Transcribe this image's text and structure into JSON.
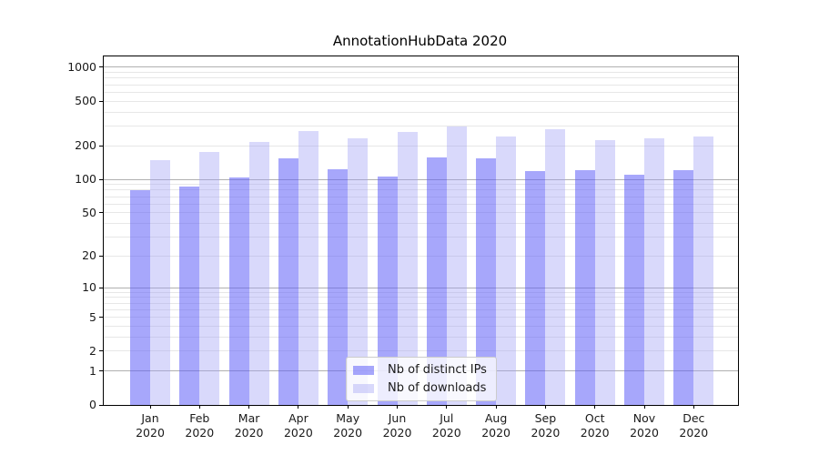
{
  "chart_data": {
    "type": "bar",
    "title": "AnnotationHubData 2020",
    "categories": [
      "Jan 2020",
      "Feb 2020",
      "Mar 2020",
      "Apr 2020",
      "May 2020",
      "Jun 2020",
      "Jul 2020",
      "Aug 2020",
      "Sep 2020",
      "Oct 2020",
      "Nov 2020",
      "Dec 2020"
    ],
    "series": [
      {
        "name": "Nb of distinct IPs",
        "color": "rgba(95,95,248,0.55)",
        "values": [
          80,
          86,
          105,
          155,
          123,
          107,
          157,
          155,
          119,
          121,
          110,
          121
        ]
      },
      {
        "name": "Nb of downloads",
        "color": "rgba(160,160,245,0.40)",
        "values": [
          150,
          176,
          218,
          272,
          232,
          266,
          297,
          242,
          281,
          223,
          233,
          242
        ]
      }
    ],
    "y_ticks": [
      0,
      1,
      2,
      5,
      10,
      20,
      50,
      100,
      200,
      500,
      1000
    ],
    "y_scale": "log10(1+x)",
    "ylim": [
      0,
      1230
    ],
    "xlabel": "",
    "ylabel": "",
    "grid": true,
    "legend_position": "lower center"
  },
  "colors": {
    "background": "#ffffff",
    "axis": "#000000",
    "grid_major": "#b0b0b0",
    "grid_minor": "#e7e7e7",
    "text": "#1a1a1a",
    "legend_border": "#cccccc"
  }
}
